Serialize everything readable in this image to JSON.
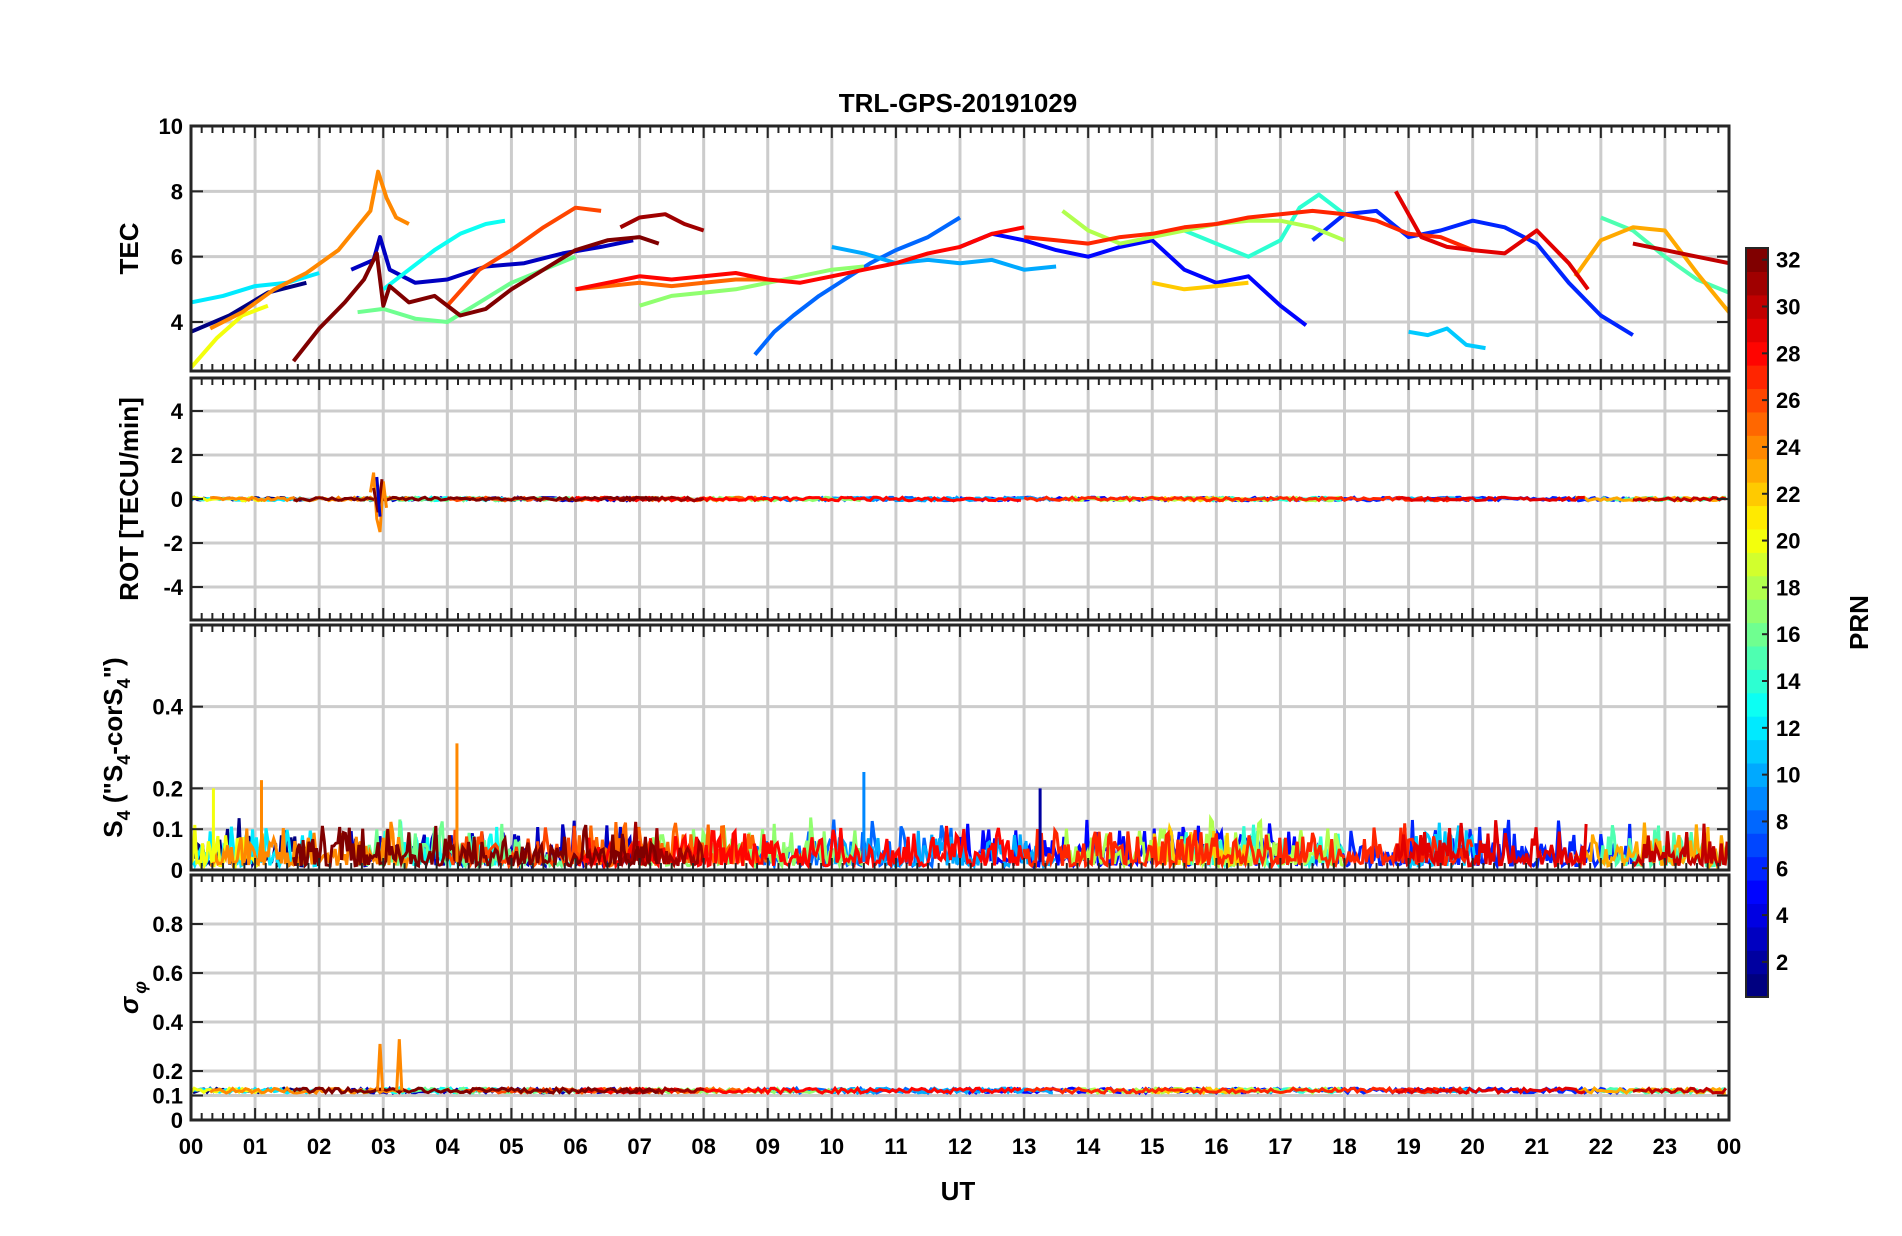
{
  "chart_data": {
    "title": "TRL-GPS-20191029",
    "type": "line",
    "xlabel": "UT",
    "x_range_hours": [
      0,
      24
    ],
    "x_tick_labels": [
      "00",
      "01",
      "02",
      "03",
      "04",
      "05",
      "06",
      "07",
      "08",
      "09",
      "10",
      "11",
      "12",
      "13",
      "14",
      "15",
      "16",
      "17",
      "18",
      "19",
      "20",
      "21",
      "22",
      "23",
      "00"
    ],
    "grid": true,
    "colorbar": {
      "label": "PRN",
      "range": [
        1,
        32
      ],
      "colormap": "jet",
      "tick_labels": [
        "2",
        "4",
        "6",
        "8",
        "10",
        "12",
        "14",
        "16",
        "18",
        "20",
        "22",
        "24",
        "26",
        "28",
        "30",
        "32"
      ]
    },
    "panels": [
      {
        "ylabel": "TEC",
        "ylim": [
          2.5,
          10
        ],
        "y_tick_labels": [
          "4",
          "6",
          "8",
          "10"
        ],
        "y_ticks": [
          4,
          6,
          8,
          10
        ],
        "series": [
          {
            "prn": 1,
            "x": [
              0.0,
              0.6,
              1.2,
              1.8
            ],
            "y": [
              3.7,
              4.2,
              4.9,
              5.2
            ]
          },
          {
            "prn": 3,
            "x": [
              2.5,
              2.85,
              2.95,
              3.1,
              3.5,
              4.0,
              4.6,
              5.2,
              5.8,
              6.4,
              6.9
            ],
            "y": [
              5.6,
              5.9,
              6.6,
              5.6,
              5.2,
              5.3,
              5.7,
              5.8,
              6.1,
              6.3,
              6.5
            ]
          },
          {
            "prn": 5,
            "x": [
              12.0,
              12.5,
              13.0,
              13.5,
              14.0,
              14.5,
              15.0,
              15.5,
              16.0,
              16.5,
              17.0,
              17.4
            ],
            "y": [
              6.3,
              6.7,
              6.5,
              6.2,
              6.0,
              6.3,
              6.5,
              5.6,
              5.2,
              5.4,
              4.5,
              3.9
            ]
          },
          {
            "prn": 6,
            "x": [
              17.5,
              18.0,
              18.5,
              19.0,
              19.5,
              20.0,
              20.5,
              21.0,
              21.5,
              22.0,
              22.5
            ],
            "y": [
              6.5,
              7.3,
              7.4,
              6.6,
              6.8,
              7.1,
              6.9,
              6.4,
              5.2,
              4.2,
              3.6
            ]
          },
          {
            "prn": 8,
            "x": [
              8.8,
              9.1,
              9.4,
              9.8,
              10.2,
              10.6,
              11.0,
              11.5,
              12.0
            ],
            "y": [
              3.0,
              3.7,
              4.2,
              4.8,
              5.3,
              5.8,
              6.2,
              6.6,
              7.2
            ]
          },
          {
            "prn": 10,
            "x": [
              10.0,
              10.5,
              11.0,
              11.5,
              12.0,
              12.5,
              13.0,
              13.5
            ],
            "y": [
              6.3,
              6.1,
              5.8,
              5.9,
              5.8,
              5.9,
              5.6,
              5.7
            ]
          },
          {
            "prn": 11,
            "x": [
              19.0,
              19.3,
              19.6,
              19.9,
              20.2
            ],
            "y": [
              3.7,
              3.6,
              3.8,
              3.3,
              3.2
            ]
          },
          {
            "prn": 12,
            "x": [
              0.0,
              0.5,
              1.0,
              1.5,
              2.0
            ],
            "y": [
              4.6,
              4.8,
              5.1,
              5.2,
              5.5
            ]
          },
          {
            "prn": 13,
            "x": [
              3.0,
              3.4,
              3.8,
              4.2,
              4.6,
              4.9
            ],
            "y": [
              5.0,
              5.6,
              6.2,
              6.7,
              7.0,
              7.1
            ]
          },
          {
            "prn": 14,
            "x": [
              15.5,
              16.0,
              16.5,
              17.0,
              17.3,
              17.6,
              18.0
            ],
            "y": [
              6.8,
              6.4,
              6.0,
              6.5,
              7.5,
              7.9,
              7.3
            ]
          },
          {
            "prn": 15,
            "x": [
              22.0,
              22.5,
              23.0,
              23.5,
              24.0
            ],
            "y": [
              7.2,
              6.8,
              6.0,
              5.3,
              4.9
            ]
          },
          {
            "prn": 16,
            "x": [
              2.6,
              3.0,
              3.5,
              4.0,
              4.5,
              5.0,
              5.5,
              6.0
            ],
            "y": [
              4.3,
              4.4,
              4.1,
              4.0,
              4.6,
              5.2,
              5.6,
              6.0
            ]
          },
          {
            "prn": 17,
            "x": [
              7.0,
              7.5,
              8.0,
              8.5,
              9.0,
              9.5,
              10.0,
              10.5
            ],
            "y": [
              4.5,
              4.8,
              4.9,
              5.0,
              5.2,
              5.4,
              5.6,
              5.7
            ]
          },
          {
            "prn": 18,
            "x": [
              13.6,
              14.0,
              14.5,
              15.0,
              15.5,
              16.0,
              16.5,
              17.0,
              17.5,
              18.0
            ],
            "y": [
              7.4,
              6.8,
              6.4,
              6.6,
              6.8,
              7.0,
              7.1,
              7.1,
              6.9,
              6.5
            ]
          },
          {
            "prn": 20,
            "x": [
              0.0,
              0.4,
              0.8,
              1.2
            ],
            "y": [
              2.6,
              3.5,
              4.2,
              4.5
            ]
          },
          {
            "prn": 22,
            "x": [
              15.0,
              15.5,
              16.0,
              16.5
            ],
            "y": [
              5.2,
              5.0,
              5.1,
              5.2
            ]
          },
          {
            "prn": 23,
            "x": [
              21.6,
              22.0,
              22.5,
              23.0,
              23.5,
              24.0
            ],
            "y": [
              5.4,
              6.5,
              6.9,
              6.8,
              5.5,
              4.3
            ]
          },
          {
            "prn": 24,
            "x": [
              0.3,
              0.8,
              1.3,
              1.8,
              2.3,
              2.8,
              2.92,
              3.05,
              3.2,
              3.4
            ],
            "y": [
              3.8,
              4.3,
              5.0,
              5.5,
              6.2,
              7.4,
              8.6,
              7.8,
              7.2,
              7.0
            ]
          },
          {
            "prn": 25,
            "x": [
              6.0,
              6.5,
              7.0,
              7.5,
              8.0,
              8.5,
              9.0
            ],
            "y": [
              5.0,
              5.1,
              5.2,
              5.1,
              5.2,
              5.3,
              5.3
            ]
          },
          {
            "prn": 26,
            "x": [
              4.0,
              4.5,
              5.0,
              5.5,
              6.0,
              6.4
            ],
            "y": [
              4.5,
              5.6,
              6.2,
              6.9,
              7.5,
              7.4
            ]
          },
          {
            "prn": 27,
            "x": [
              13.0,
              13.5,
              14.0,
              14.5,
              15.0,
              15.5,
              16.0,
              16.5,
              17.0,
              17.5,
              18.0,
              18.5,
              19.0,
              19.5,
              20.0
            ],
            "y": [
              6.6,
              6.5,
              6.4,
              6.6,
              6.7,
              6.9,
              7.0,
              7.2,
              7.3,
              7.4,
              7.3,
              7.1,
              6.7,
              6.6,
              6.2
            ]
          },
          {
            "prn": 28,
            "x": [
              6.0,
              6.5,
              7.0,
              7.5,
              8.0,
              8.5,
              9.0,
              9.5,
              10.0,
              10.5,
              11.0,
              11.5,
              12.0,
              12.5,
              13.0
            ],
            "y": [
              5.0,
              5.2,
              5.4,
              5.3,
              5.4,
              5.5,
              5.3,
              5.2,
              5.4,
              5.6,
              5.8,
              6.1,
              6.3,
              6.7,
              6.9
            ]
          },
          {
            "prn": 29,
            "x": [
              18.8,
              19.2,
              19.6,
              20.0,
              20.5,
              21.0,
              21.5,
              21.8
            ],
            "y": [
              8.0,
              6.6,
              6.3,
              6.2,
              6.1,
              6.8,
              5.8,
              5.0
            ]
          },
          {
            "prn": 30,
            "x": [
              22.5,
              23.0,
              23.5,
              24.0
            ],
            "y": [
              6.4,
              6.2,
              6.0,
              5.8
            ]
          },
          {
            "prn": 31,
            "x": [
              6.7,
              7.0,
              7.4,
              7.7,
              8.0
            ],
            "y": [
              6.9,
              7.2,
              7.3,
              7.0,
              6.8
            ]
          },
          {
            "prn": 32,
            "x": [
              1.6,
              2.0,
              2.4,
              2.7,
              2.9,
              3.0,
              3.1,
              3.4,
              3.8,
              4.2,
              4.6,
              5.0,
              5.5,
              6.0,
              6.5,
              7.0,
              7.3
            ],
            "y": [
              2.8,
              3.8,
              4.6,
              5.3,
              6.1,
              4.5,
              5.1,
              4.6,
              4.8,
              4.2,
              4.4,
              5.0,
              5.6,
              6.2,
              6.5,
              6.6,
              6.4
            ]
          }
        ]
      },
      {
        "ylabel": "ROT [TECU/min]",
        "ylim": [
          -5.5,
          5.5
        ],
        "y_tick_labels": [
          "-4",
          "-2",
          "0",
          "2",
          "4"
        ],
        "y_ticks": [
          -4,
          -2,
          0,
          2,
          4
        ],
        "baseline": 0.0,
        "noise_amplitude": 0.08,
        "spikes": [
          {
            "prn": 24,
            "x": [
              2.8,
              2.85,
              2.9,
              2.95,
              3.0,
              3.05
            ],
            "y": [
              0.3,
              1.2,
              -0.9,
              -1.5,
              0.8,
              -0.4
            ]
          },
          {
            "prn": 32,
            "x": [
              2.85,
              2.92,
              2.98
            ],
            "y": [
              0.5,
              -0.6,
              0.9
            ]
          },
          {
            "prn": 3,
            "x": [
              2.9,
              2.95
            ],
            "y": [
              1.0,
              -0.8
            ]
          }
        ]
      },
      {
        "ylabel": "S4 (\"S4-corS4\")",
        "ylabel_main": "S",
        "ylabel_sub1": "4",
        "ylabel_mid": " (\"S",
        "ylabel_sub2": "4",
        "ylabel_mid2": "-corS",
        "ylabel_sub3": "4",
        "ylabel_end": "\")",
        "ylim": [
          0,
          0.6
        ],
        "y_tick_labels": [
          "0",
          "0.1",
          "0.2",
          "0.4"
        ],
        "y_ticks": [
          0,
          0.1,
          0.2,
          0.4
        ],
        "typical_range": [
          0.01,
          0.12
        ],
        "spikes": [
          {
            "prn": 24,
            "x": 4.15,
            "y": 0.31
          },
          {
            "prn": 9,
            "x": 10.5,
            "y": 0.24
          },
          {
            "prn": 2,
            "x": 13.25,
            "y": 0.2
          },
          {
            "prn": 24,
            "x": 1.1,
            "y": 0.22
          },
          {
            "prn": 20,
            "x": 0.35,
            "y": 0.2
          }
        ]
      },
      {
        "ylabel": "σφ",
        "ylabel_main": "σ",
        "ylabel_sub1": "φ",
        "ylim": [
          0,
          1.0
        ],
        "y_tick_labels": [
          "0",
          "0.1",
          "0.2",
          "0.4",
          "0.6",
          "0.8"
        ],
        "y_ticks": [
          0,
          0.1,
          0.2,
          0.4,
          0.6,
          0.8
        ],
        "baseline": 0.12,
        "spikes": [
          {
            "prn": 24,
            "x": 2.95,
            "y": 0.31
          },
          {
            "prn": 24,
            "x": 3.25,
            "y": 0.33
          }
        ]
      }
    ]
  }
}
